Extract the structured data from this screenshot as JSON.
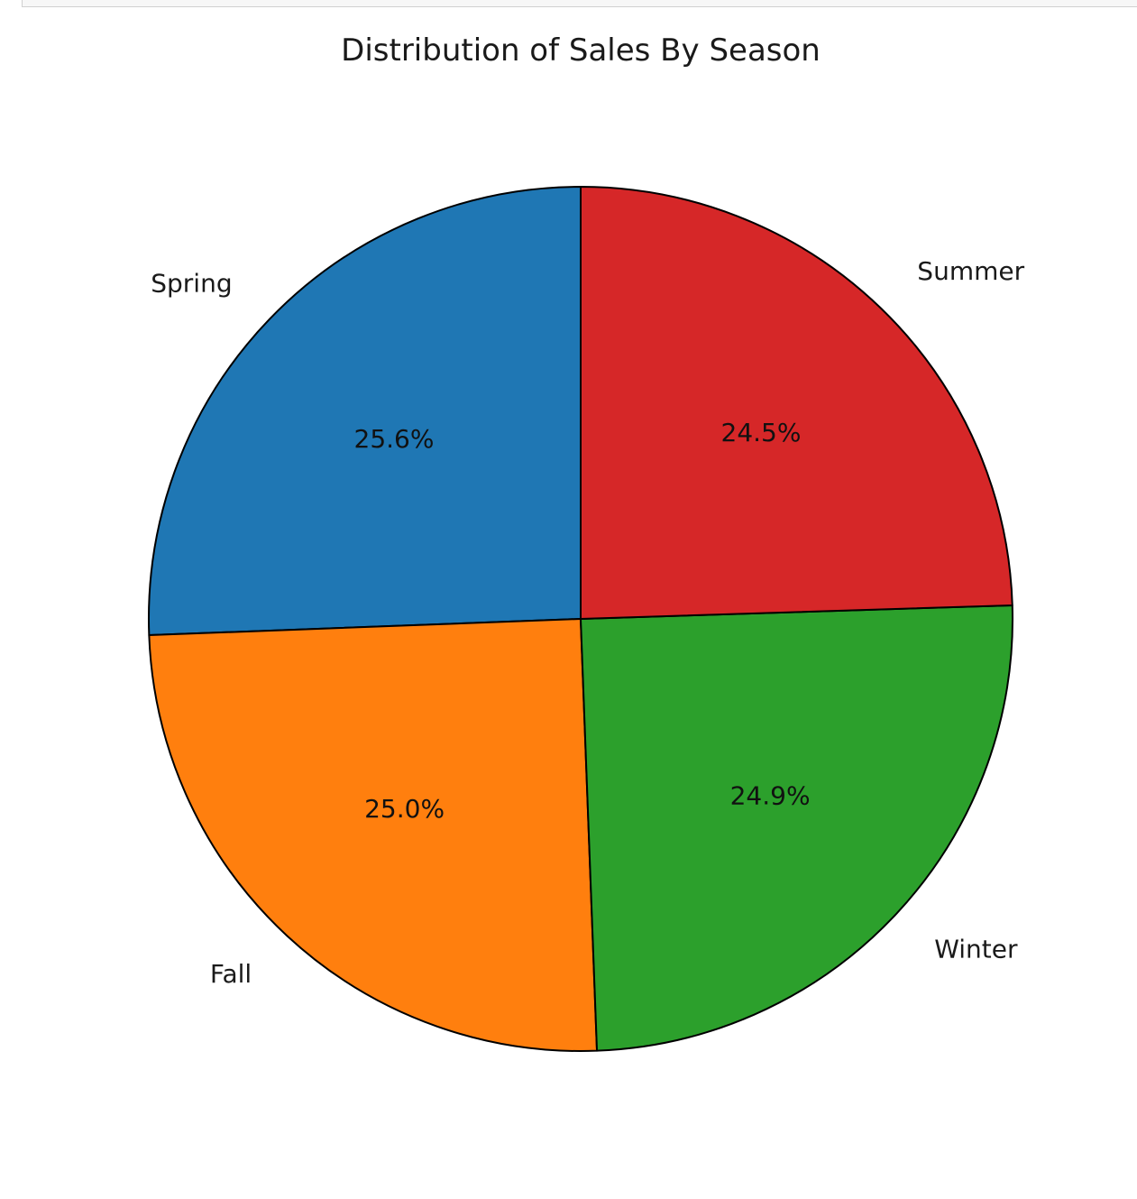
{
  "chart_data": {
    "type": "pie",
    "title": "Distribution of Sales By Season",
    "start_angle_deg": 90,
    "direction": "counterclockwise",
    "slices": [
      {
        "label": "Spring",
        "value": 25.6,
        "pct_text": "25.6%",
        "color": "#1f77b4"
      },
      {
        "label": "Fall",
        "value": 25.0,
        "pct_text": "25.0%",
        "color": "#ff7f0e"
      },
      {
        "label": "Winter",
        "value": 24.9,
        "pct_text": "24.9%",
        "color": "#2ca02c"
      },
      {
        "label": "Summer",
        "value": 24.5,
        "pct_text": "24.5%",
        "color": "#d62728"
      }
    ],
    "edge_color": "#000000"
  }
}
